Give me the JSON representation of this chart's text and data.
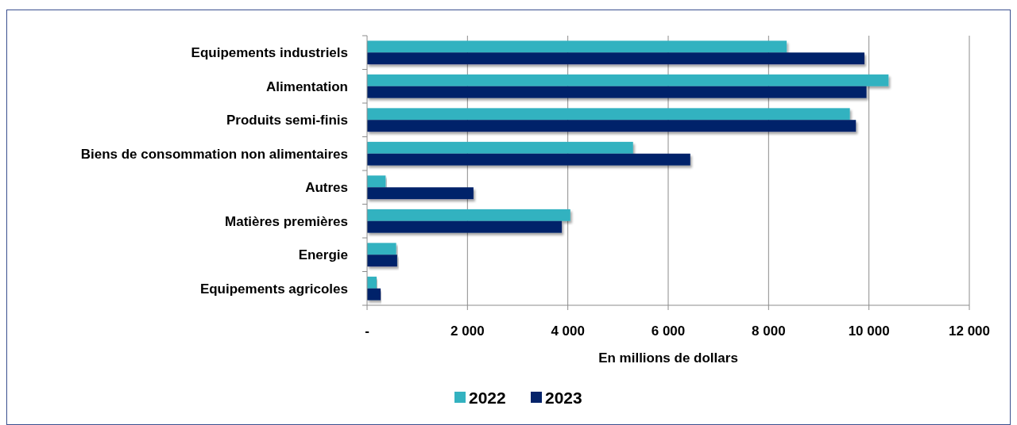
{
  "chart_data": {
    "type": "bar",
    "orientation": "horizontal",
    "xlabel": "En millions de dollars",
    "categories": [
      "Equipements industriels",
      "Alimentation",
      "Produits semi-finis",
      "Biens de consommation non alimentaires",
      "Autres",
      "Matières premières",
      "Energie",
      "Equipements agricoles"
    ],
    "series": [
      {
        "name": "2022",
        "color": "#33b2c0",
        "values": [
          8360,
          10390,
          9620,
          5300,
          370,
          4050,
          580,
          190
        ]
      },
      {
        "name": "2023",
        "color": "#06246a",
        "values": [
          9910,
          9950,
          9740,
          6440,
          2120,
          3880,
          600,
          270
        ]
      }
    ],
    "xlim": [
      0,
      12000
    ],
    "xticks": [
      {
        "value": 0,
        "label": "-"
      },
      {
        "value": 2000,
        "label": "2 000"
      },
      {
        "value": 4000,
        "label": "4 000"
      },
      {
        "value": 6000,
        "label": "6 000"
      },
      {
        "value": 8000,
        "label": "8 000"
      },
      {
        "value": 10000,
        "label": "10 000"
      },
      {
        "value": 12000,
        "label": "12 000"
      }
    ],
    "grid": "x",
    "legend": "bottom"
  }
}
